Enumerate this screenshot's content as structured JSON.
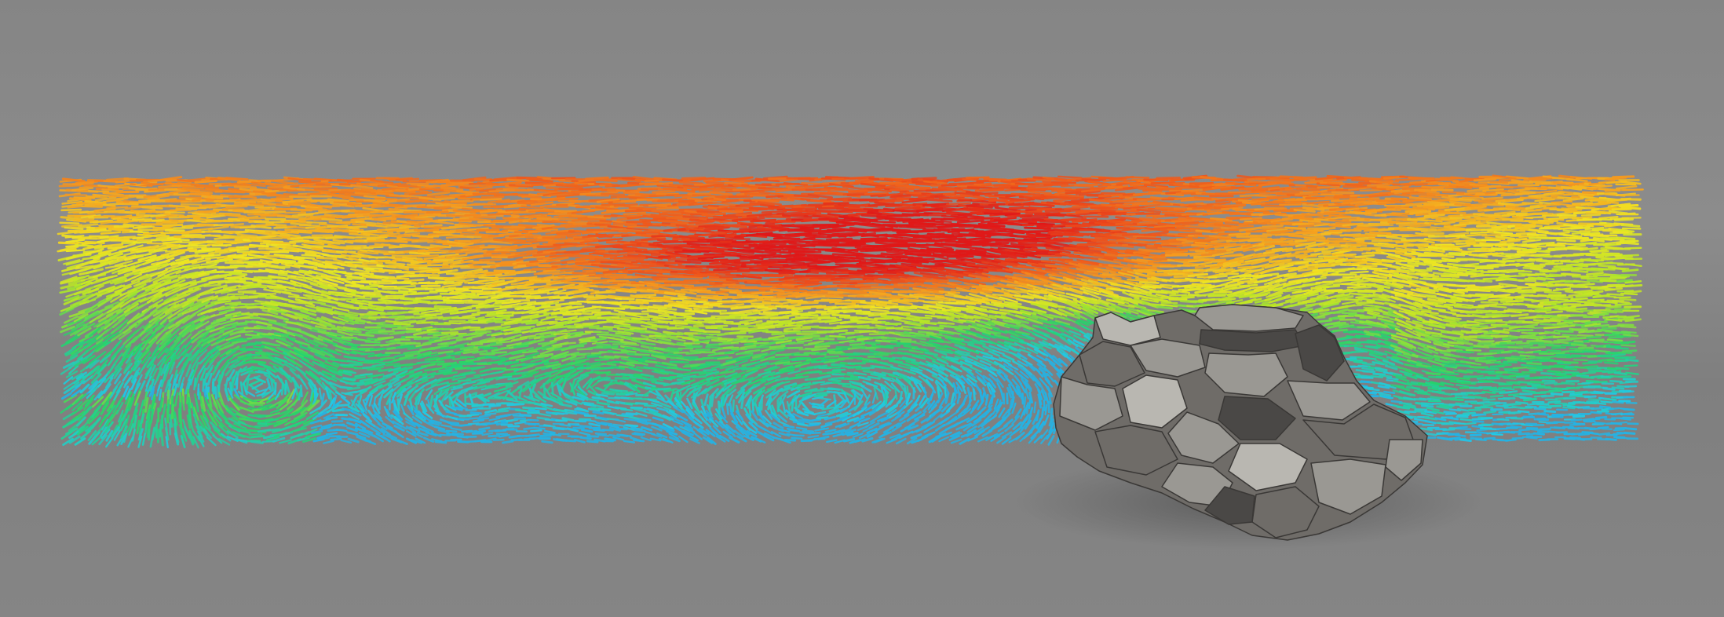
{
  "scene": {
    "background_colors": {
      "top": "#858585",
      "horizon": "#8c8c8c",
      "floor": "#7f7f7f",
      "floor_near": "#858585"
    },
    "colormap": [
      "#2f3fd8",
      "#22c9e6",
      "#26d36a",
      "#b7e626",
      "#f0e622",
      "#f6a21e",
      "#ef5a1c",
      "#e01818"
    ],
    "rock_colors": {
      "dark": "#4a4846",
      "mid": "#6f6c68",
      "light": "#9a9893",
      "highlight": "#b9b7b1",
      "shadow": "#3a3836"
    }
  }
}
